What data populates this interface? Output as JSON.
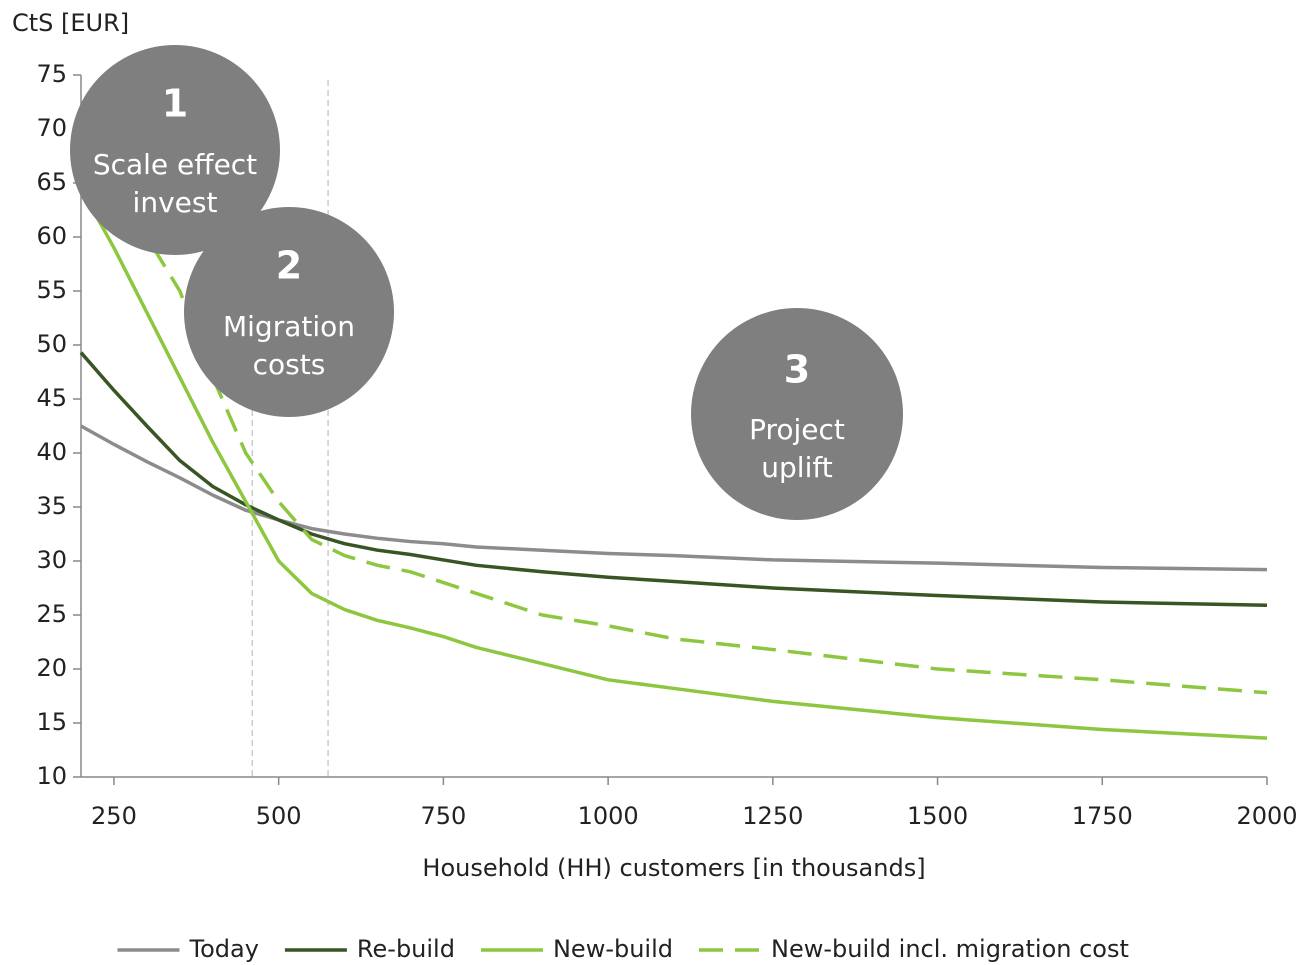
{
  "chart_data": {
    "type": "line",
    "y_label": "CtS [EUR]",
    "x_label": "Household (HH) customers [in thousands]",
    "xlim": [
      200,
      2000
    ],
    "xticks": [
      250,
      500,
      750,
      1000,
      1250,
      1500,
      1750,
      2000
    ],
    "ylim": [
      10,
      75
    ],
    "yticks": [
      10,
      15,
      20,
      25,
      30,
      35,
      40,
      45,
      50,
      55,
      60,
      65,
      70,
      75
    ],
    "grid": false,
    "legend": "bottom",
    "reference_lines": [
      460,
      575
    ],
    "annotations": [
      {
        "number": "1",
        "lines": [
          "Scale effect",
          "invest"
        ]
      },
      {
        "number": "2",
        "lines": [
          "Migration",
          "costs"
        ]
      },
      {
        "number": "3",
        "lines": [
          "Project",
          "uplift"
        ]
      }
    ],
    "series": [
      {
        "name": "Today",
        "color": "#8c8c8c",
        "dashed": false,
        "x": [
          200,
          250,
          300,
          350,
          400,
          450,
          500,
          550,
          600,
          650,
          700,
          750,
          800,
          900,
          1000,
          1100,
          1250,
          1500,
          1750,
          2000
        ],
        "values": [
          42.5,
          40.8,
          39.2,
          37.7,
          36.1,
          34.7,
          33.8,
          33.0,
          32.5,
          32.1,
          31.8,
          31.6,
          31.3,
          31.0,
          30.7,
          30.5,
          30.1,
          29.8,
          29.4,
          29.2
        ]
      },
      {
        "name": "Re-build",
        "color": "#375623",
        "dashed": false,
        "x": [
          200,
          250,
          300,
          350,
          400,
          450,
          500,
          550,
          600,
          650,
          700,
          750,
          800,
          900,
          1000,
          1100,
          1250,
          1500,
          1750,
          2000
        ],
        "values": [
          49.3,
          45.8,
          42.5,
          39.3,
          36.9,
          35.2,
          33.8,
          32.5,
          31.6,
          31.0,
          30.6,
          30.1,
          29.6,
          29.0,
          28.5,
          28.1,
          27.5,
          26.8,
          26.2,
          25.9
        ]
      },
      {
        "name": "New-build",
        "color": "#8dc63f",
        "dashed": false,
        "x": [
          200,
          250,
          300,
          350,
          400,
          450,
          500,
          550,
          600,
          650,
          700,
          750,
          800,
          900,
          1000,
          1100,
          1250,
          1500,
          1750,
          2000
        ],
        "values": [
          64.5,
          59.0,
          53.0,
          47.0,
          41.0,
          35.5,
          30.0,
          27.0,
          25.5,
          24.5,
          23.8,
          23.0,
          22.0,
          20.5,
          19.0,
          18.2,
          17.0,
          15.5,
          14.4,
          13.6
        ]
      },
      {
        "name": "New-build incl. migration cost",
        "color": "#8dc63f",
        "dashed": true,
        "x": [
          280,
          350,
          400,
          450,
          500,
          550,
          600,
          650,
          700,
          750,
          800,
          900,
          1000,
          1100,
          1250,
          1500,
          1750,
          2000
        ],
        "values": [
          62.0,
          55.0,
          47.0,
          40.0,
          35.5,
          32.0,
          30.5,
          29.6,
          29.0,
          28.0,
          27.0,
          25.0,
          24.0,
          22.8,
          21.8,
          20.0,
          19.0,
          17.8
        ]
      }
    ]
  }
}
